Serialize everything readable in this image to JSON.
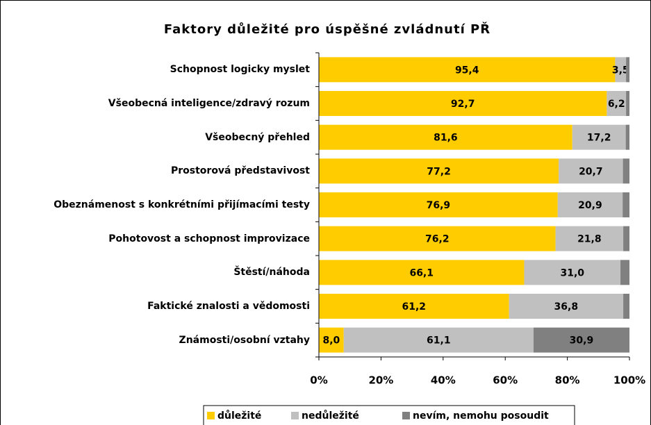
{
  "chart_data": {
    "type": "stacked-bar-horizontal",
    "title": "Faktory důležité pro úspěšné zvládnutí PŘ",
    "categories": [
      "Schopnost logicky myslet",
      "Všeobecná inteligence/zdravý rozum",
      "Všeobecný přehled",
      "Prostorová představivost",
      "Obeznámenost s konkrétními přijímacími testy",
      "Pohotovost a schopnost improvizace",
      "Štěstí/náhoda",
      "Faktické znalosti a vědomosti",
      "Známosti/osobní vztahy"
    ],
    "series": [
      {
        "name": "důležité",
        "color": "#ffcc00",
        "values": [
          95.4,
          92.7,
          81.6,
          77.2,
          76.9,
          76.2,
          66.1,
          61.2,
          8.0
        ],
        "value_labels": [
          "95,4",
          "92,7",
          "81,6",
          "77,2",
          "76,9",
          "76,2",
          "66,1",
          "61,2",
          "8,0"
        ]
      },
      {
        "name": "nedůležité",
        "color": "#c0c0c0",
        "values": [
          3.5,
          6.2,
          17.2,
          20.7,
          20.9,
          21.8,
          31.0,
          36.8,
          61.1
        ],
        "value_labels": [
          "3,5",
          "6,2",
          "17,2",
          "20,7",
          "20,9",
          "21,8",
          "31,0",
          "36,8",
          "61,1"
        ]
      },
      {
        "name": "nevím, nemohu posoudit",
        "color": "#808080",
        "values": [
          1.1,
          1.1,
          1.2,
          2.1,
          2.2,
          2.0,
          2.9,
          2.0,
          30.9
        ],
        "value_labels": [
          null,
          null,
          null,
          null,
          null,
          null,
          null,
          null,
          "30,9"
        ]
      }
    ],
    "xlim": [
      0,
      100
    ],
    "xticks": [
      {
        "value": 0,
        "label": "0%"
      },
      {
        "value": 20,
        "label": "20%"
      },
      {
        "value": 40,
        "label": "40%"
      },
      {
        "value": 60,
        "label": "60%"
      },
      {
        "value": 80,
        "label": "80%"
      },
      {
        "value": 100,
        "label": "100%"
      }
    ],
    "legend": "bottom"
  }
}
